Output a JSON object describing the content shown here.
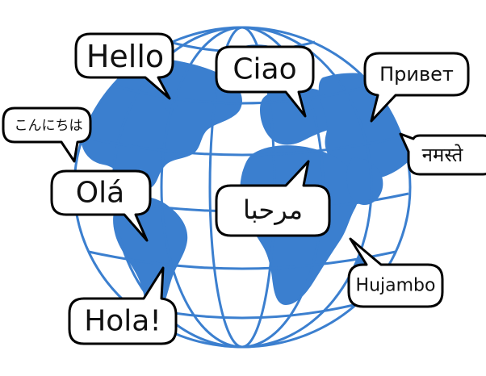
{
  "colors": {
    "globe": "#3b7fcf",
    "bubble_fill": "#ffffff",
    "bubble_stroke": "#000000",
    "text": "#111111"
  },
  "greetings": {
    "hello": "Hello",
    "ciao": "Ciao",
    "privet": "Привет",
    "konnichiwa": "こんにちは",
    "namaste": "नमस्ते",
    "ola": "Olá",
    "marhaba": "مرحبا",
    "hujambo": "Hujambo",
    "hola": "Hola!"
  }
}
